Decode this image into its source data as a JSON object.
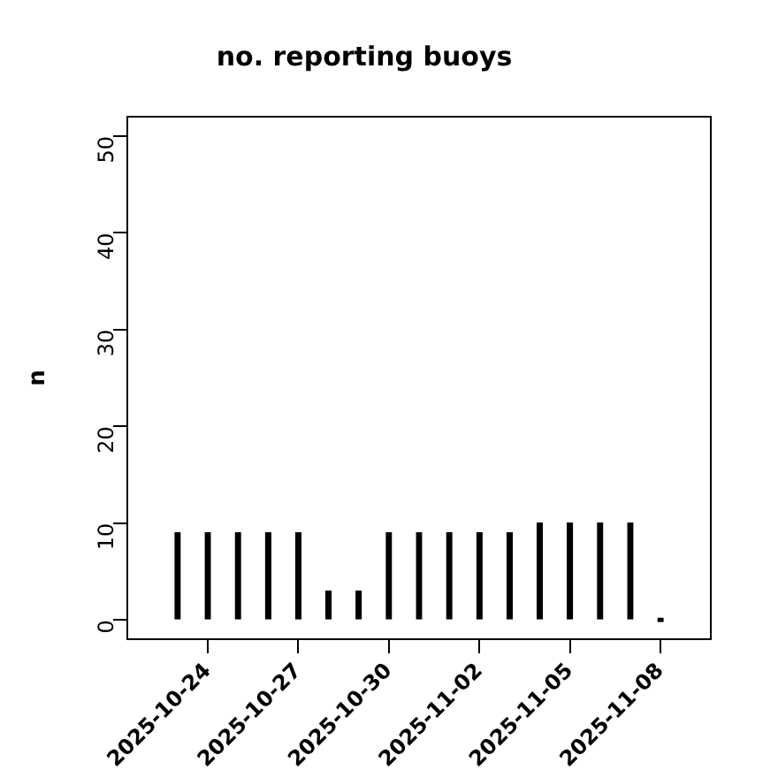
{
  "chart_data": {
    "type": "bar",
    "title": "no. reporting buoys",
    "ylabel": "n",
    "x": [
      "2025-10-23",
      "2025-10-24",
      "2025-10-25",
      "2025-10-26",
      "2025-10-27",
      "2025-10-28",
      "2025-10-29",
      "2025-10-30",
      "2025-10-31",
      "2025-11-01",
      "2025-11-02",
      "2025-11-03",
      "2025-11-04",
      "2025-11-05",
      "2025-11-06",
      "2025-11-07",
      "2025-11-08"
    ],
    "values": [
      9,
      9,
      9,
      9,
      9,
      3,
      3,
      9,
      9,
      9,
      9,
      9,
      10,
      10,
      10,
      10,
      0
    ],
    "color": "#000000",
    "xlim": [
      "2025-10-21T08:00",
      "2025-11-09T16:00"
    ],
    "xticks": [
      "2025-10-24",
      "2025-10-27",
      "2025-10-30",
      "2025-11-02",
      "2025-11-05",
      "2025-11-08"
    ],
    "ylim": [
      -2,
      52
    ],
    "yticks": [
      0,
      10,
      20,
      30,
      40,
      50
    ],
    "grid": false,
    "legend": false
  }
}
